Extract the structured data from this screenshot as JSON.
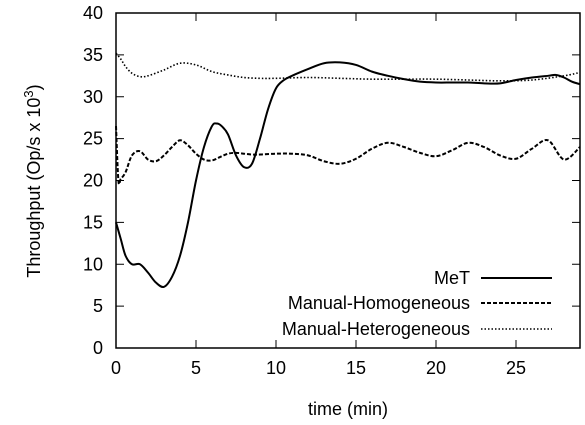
{
  "chart_data": {
    "type": "line",
    "xlabel": "time (min)",
    "ylabel": "Throughput (Op/s x 10",
    "ylabel_sup": "3",
    "ylabel_close": ")",
    "xlim": [
      0,
      29
    ],
    "ylim": [
      0,
      40
    ],
    "xticks": [
      "0",
      "5",
      "10",
      "15",
      "20",
      "25"
    ],
    "xtick_values": [
      0,
      5,
      10,
      15,
      20,
      25
    ],
    "yticks": [
      "0",
      "5",
      "10",
      "15",
      "20",
      "25",
      "30",
      "35",
      "40"
    ],
    "ytick_values": [
      0,
      5,
      10,
      15,
      20,
      25,
      30,
      35,
      40
    ],
    "legend_position": "bottom-right",
    "series": [
      {
        "name": "MeT",
        "style": "solid",
        "color": "#000000",
        "x": [
          0,
          0.3,
          0.6,
          1.0,
          1.5,
          2.0,
          2.5,
          3.0,
          3.5,
          4.0,
          4.5,
          5.0,
          5.5,
          6.0,
          6.3,
          6.6,
          7.0,
          7.5,
          8.0,
          8.5,
          9.0,
          9.5,
          10.0,
          10.5,
          11.0,
          12.0,
          13.0,
          14.0,
          15.0,
          16.0,
          17.0,
          18.0,
          19.0,
          20.0,
          21.0,
          22.0,
          23.0,
          24.0,
          25.0,
          26.0,
          27.0,
          27.5,
          28.0,
          28.5,
          29.0
        ],
        "y": [
          15.0,
          13.0,
          11.0,
          10.0,
          10.0,
          9.0,
          7.8,
          7.3,
          8.5,
          11.0,
          15.0,
          20.0,
          24.0,
          26.5,
          26.8,
          26.5,
          25.5,
          23.0,
          21.6,
          22.0,
          25.0,
          28.5,
          31.0,
          32.0,
          32.5,
          33.3,
          34.0,
          34.1,
          33.8,
          33.0,
          32.5,
          32.1,
          31.8,
          31.7,
          31.7,
          31.7,
          31.6,
          31.6,
          32.0,
          32.3,
          32.5,
          32.6,
          32.3,
          31.8,
          31.5
        ]
      },
      {
        "name": "Manual-Homogeneous",
        "style": "dashed",
        "color": "#000000",
        "x": [
          0,
          0.15,
          0.3,
          0.6,
          1.0,
          1.5,
          2.0,
          2.5,
          3.0,
          3.5,
          4.0,
          4.5,
          5.0,
          5.5,
          6.0,
          6.5,
          7.0,
          7.5,
          8.0,
          8.5,
          9.0,
          10.0,
          11.0,
          12.0,
          13.0,
          14.0,
          15.0,
          16.0,
          17.0,
          18.0,
          19.0,
          20.0,
          21.0,
          22.0,
          23.0,
          24.0,
          25.0,
          26.0,
          27.0,
          28.0,
          29.0
        ],
        "y": [
          26.5,
          20.0,
          20.2,
          21.0,
          23.0,
          23.5,
          22.5,
          22.3,
          23.0,
          24.0,
          24.8,
          24.2,
          23.2,
          22.5,
          22.4,
          22.8,
          23.2,
          23.3,
          23.2,
          23.1,
          23.1,
          23.2,
          23.2,
          23.0,
          22.3,
          22.0,
          22.6,
          23.8,
          24.5,
          24.0,
          23.3,
          22.9,
          23.6,
          24.5,
          24.0,
          23.0,
          22.6,
          23.8,
          24.8,
          22.5,
          24.0
        ]
      },
      {
        "name": "Manual-Heterogeneous",
        "style": "dotted",
        "color": "#000000",
        "x": [
          0,
          0.3,
          0.6,
          1.0,
          1.5,
          2.0,
          3.0,
          4.0,
          5.0,
          6.0,
          7.0,
          8.0,
          9.0,
          10.0,
          12.0,
          14.0,
          16.0,
          18.0,
          20.0,
          22.0,
          24.0,
          26.0,
          28.0,
          29.0
        ],
        "y": [
          35.2,
          34.5,
          33.6,
          32.8,
          32.4,
          32.5,
          33.2,
          34.0,
          33.8,
          33.0,
          32.6,
          32.3,
          32.2,
          32.2,
          32.3,
          32.2,
          32.1,
          32.1,
          32.1,
          32.0,
          31.9,
          32.0,
          32.5,
          32.9
        ]
      }
    ]
  }
}
